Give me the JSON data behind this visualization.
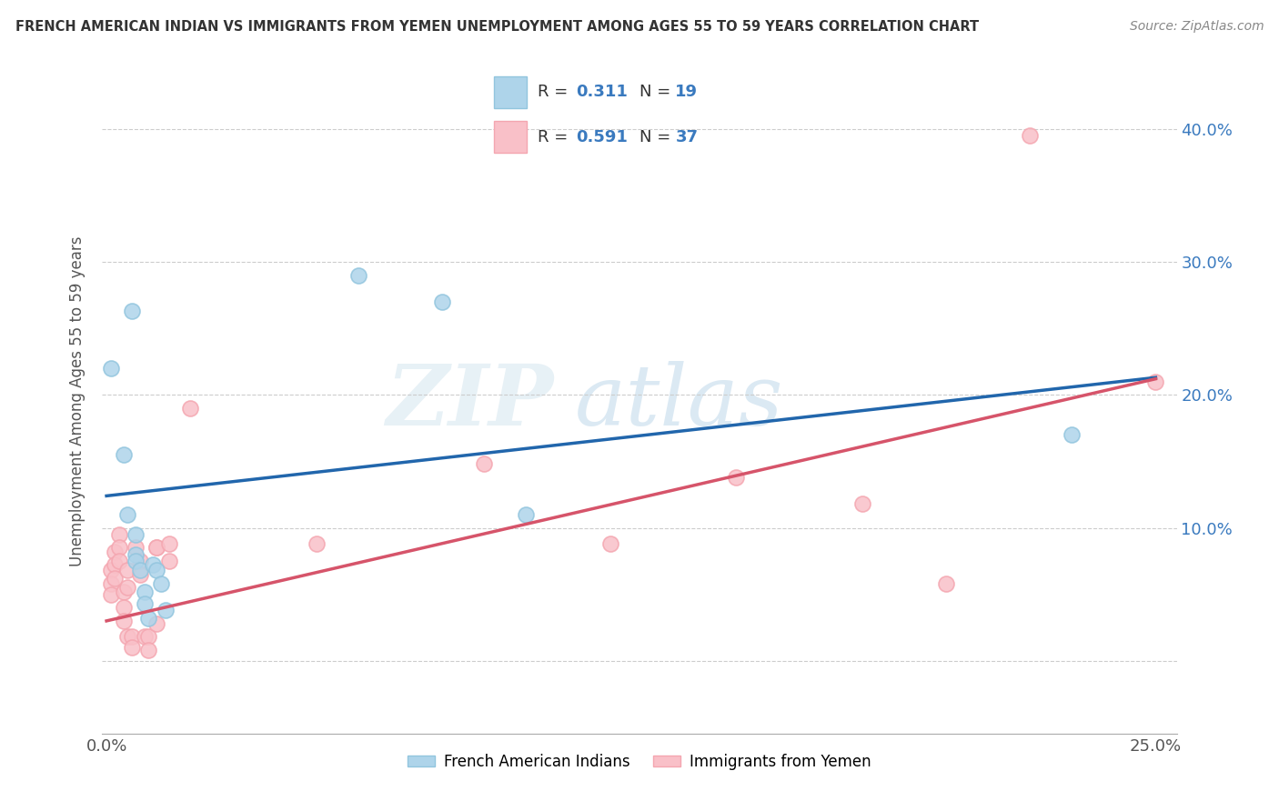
{
  "title": "FRENCH AMERICAN INDIAN VS IMMIGRANTS FROM YEMEN UNEMPLOYMENT AMONG AGES 55 TO 59 YEARS CORRELATION CHART",
  "source": "Source: ZipAtlas.com",
  "ylabel": "Unemployment Among Ages 55 to 59 years",
  "xlim": [
    -0.001,
    0.255
  ],
  "ylim": [
    -0.055,
    0.445
  ],
  "yticks": [
    0.0,
    0.1,
    0.2,
    0.3,
    0.4
  ],
  "yticklabels": [
    "",
    "10.0%",
    "20.0%",
    "30.0%",
    "40.0%"
  ],
  "xticks": [
    0.0,
    0.05,
    0.1,
    0.15,
    0.2,
    0.25
  ],
  "xticklabels": [
    "0.0%",
    "",
    "",
    "",
    "",
    "25.0%"
  ],
  "legend_blue_r": "0.311",
  "legend_blue_n": "19",
  "legend_pink_r": "0.591",
  "legend_pink_n": "37",
  "legend_label_blue": "French American Indians",
  "legend_label_pink": "Immigrants from Yemen",
  "watermark_zip": "ZIP",
  "watermark_atlas": "atlas",
  "blue_color": "#92c5de",
  "pink_color": "#f4a6b0",
  "blue_fill": "#aed4ea",
  "pink_fill": "#f9c0c8",
  "blue_line_color": "#2166ac",
  "pink_line_color": "#d6546a",
  "blue_scatter": [
    [
      0.001,
      0.22
    ],
    [
      0.004,
      0.155
    ],
    [
      0.005,
      0.11
    ],
    [
      0.006,
      0.263
    ],
    [
      0.007,
      0.095
    ],
    [
      0.007,
      0.08
    ],
    [
      0.007,
      0.075
    ],
    [
      0.008,
      0.068
    ],
    [
      0.009,
      0.052
    ],
    [
      0.009,
      0.043
    ],
    [
      0.01,
      0.032
    ],
    [
      0.011,
      0.072
    ],
    [
      0.012,
      0.068
    ],
    [
      0.013,
      0.058
    ],
    [
      0.014,
      0.038
    ],
    [
      0.06,
      0.29
    ],
    [
      0.08,
      0.27
    ],
    [
      0.1,
      0.11
    ],
    [
      0.23,
      0.17
    ]
  ],
  "pink_scatter": [
    [
      0.001,
      0.068
    ],
    [
      0.001,
      0.058
    ],
    [
      0.001,
      0.05
    ],
    [
      0.002,
      0.082
    ],
    [
      0.002,
      0.072
    ],
    [
      0.002,
      0.062
    ],
    [
      0.003,
      0.095
    ],
    [
      0.003,
      0.085
    ],
    [
      0.003,
      0.075
    ],
    [
      0.004,
      0.052
    ],
    [
      0.004,
      0.04
    ],
    [
      0.004,
      0.03
    ],
    [
      0.005,
      0.068
    ],
    [
      0.005,
      0.055
    ],
    [
      0.005,
      0.018
    ],
    [
      0.006,
      0.018
    ],
    [
      0.006,
      0.01
    ],
    [
      0.007,
      0.085
    ],
    [
      0.008,
      0.075
    ],
    [
      0.008,
      0.065
    ],
    [
      0.009,
      0.018
    ],
    [
      0.01,
      0.018
    ],
    [
      0.01,
      0.008
    ],
    [
      0.012,
      0.085
    ],
    [
      0.012,
      0.085
    ],
    [
      0.012,
      0.028
    ],
    [
      0.015,
      0.088
    ],
    [
      0.015,
      0.075
    ],
    [
      0.02,
      0.19
    ],
    [
      0.05,
      0.088
    ],
    [
      0.09,
      0.148
    ],
    [
      0.12,
      0.088
    ],
    [
      0.15,
      0.138
    ],
    [
      0.18,
      0.118
    ],
    [
      0.2,
      0.058
    ],
    [
      0.22,
      0.395
    ],
    [
      0.25,
      0.21
    ]
  ],
  "blue_line_x": [
    0.0,
    0.25
  ],
  "blue_line_y": [
    0.124,
    0.213
  ],
  "pink_line_x": [
    0.0,
    0.25
  ],
  "pink_line_y": [
    0.03,
    0.212
  ]
}
